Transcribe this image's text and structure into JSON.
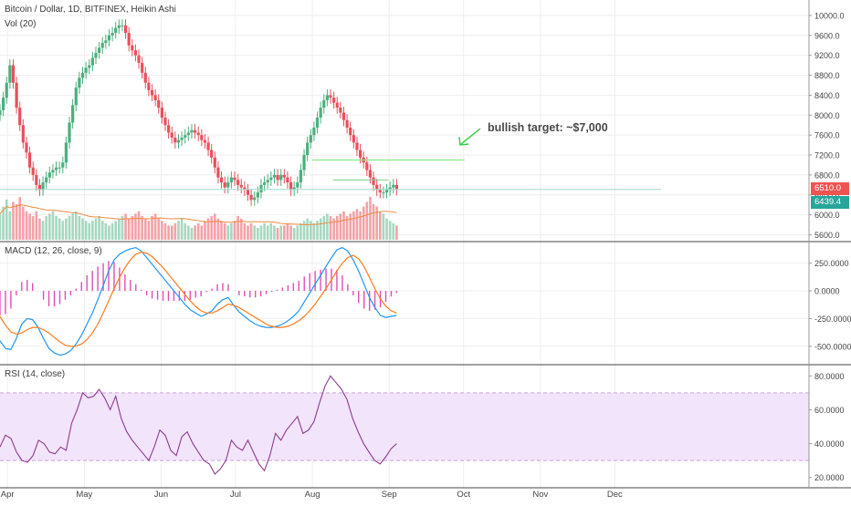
{
  "header": {
    "title": "Bitcoin / Dollar, 1D, BITFINEX, Heikin Ashi",
    "volume_label": "Vol (20)"
  },
  "annotation": {
    "text": "bullish target: ~$7,000",
    "color": "#4a4a4a",
    "arrow_color": "#2ecc40"
  },
  "price_tags": {
    "last_price": "6510.0",
    "last_price_color": "#ef5350",
    "ma_value": "6439.4",
    "ma_color": "#26a69a"
  },
  "colors": {
    "up": "#4caf7d",
    "down": "#e94f5b",
    "vol_up": "#a6d8bf",
    "vol_down": "#f3a2a8",
    "vol_ma": "#f08a3c",
    "macd": "#2196f3",
    "signal": "#ff7a1a",
    "hist": "#e14eb4",
    "rsi": "#8e3b8e",
    "rsi_band": "#f1e4fb",
    "target_line": "#7be87b",
    "grid": "#eeeeee"
  },
  "macd_label": "MACD (12, 26, close, 9)",
  "rsi_label": "RSI (14, close)",
  "chart_data": [
    {
      "type": "candlestick",
      "title": "Bitcoin / Dollar, 1D, BITFINEX, Heikin Ashi",
      "ylim": [
        5500,
        10200
      ],
      "y_ticks": [
        "10000.0",
        "9600.0",
        "9200.0",
        "8800.0",
        "8400.0",
        "8000.0",
        "7600.0",
        "7200.0",
        "6800.0",
        "6400.0",
        "6000.0",
        "5600.0"
      ],
      "y_tick_values": [
        10000,
        9600,
        9200,
        8800,
        8400,
        8000,
        7600,
        7200,
        6800,
        6400,
        6000,
        5600
      ],
      "x_ticks": [
        "Apr",
        "May",
        "Jun",
        "Jul",
        "Aug",
        "Sep",
        "Oct",
        "Nov",
        "Dec"
      ],
      "x_tick_days": [
        9,
        102,
        195,
        285,
        378,
        471,
        561,
        654,
        744
      ],
      "series": [
        {
          "name": "close",
          "start_day": 0,
          "values": [
            8100,
            8350,
            8650,
            9000,
            8650,
            8150,
            7800,
            7450,
            7250,
            6950,
            6800,
            6600,
            6500,
            6650,
            6750,
            6850,
            6900,
            6950,
            6950,
            7050,
            7450,
            7850,
            8200,
            8550,
            8750,
            8850,
            8950,
            9000,
            9150,
            9250,
            9350,
            9450,
            9500,
            9600,
            9650,
            9750,
            9800,
            9800,
            9650,
            9400,
            9300,
            9200,
            9050,
            8850,
            8650,
            8500,
            8400,
            8300,
            8150,
            7950,
            7800,
            7650,
            7550,
            7450,
            7500,
            7550,
            7600,
            7650,
            7700,
            7650,
            7600,
            7500,
            7450,
            7300,
            7150,
            6950,
            6750,
            6650,
            6550,
            6650,
            6750,
            6700,
            6600,
            6550,
            6500,
            6400,
            6300,
            6350,
            6450,
            6600,
            6650,
            6700,
            6750,
            6800,
            6700,
            6800,
            6750,
            6650,
            6500,
            6550,
            6650,
            6900,
            7200,
            7450,
            7600,
            7750,
            7950,
            8150,
            8300,
            8400,
            8350,
            8250,
            8150,
            8050,
            7900,
            7750,
            7600,
            7450,
            7300,
            7150,
            7050,
            6900,
            6750,
            6600,
            6500,
            6450,
            6450,
            6500,
            6550,
            6600,
            6510
          ]
        },
        {
          "name": "open",
          "start_day": 0,
          "values": [
            8000,
            8100,
            8350,
            8650,
            9000,
            8650,
            8150,
            7800,
            7450,
            7250,
            6950,
            6800,
            6600,
            6500,
            6650,
            6750,
            6850,
            6900,
            6950,
            6950,
            7050,
            7450,
            7850,
            8200,
            8550,
            8750,
            8850,
            8950,
            9000,
            9150,
            9250,
            9350,
            9450,
            9500,
            9600,
            9650,
            9750,
            9800,
            9800,
            9650,
            9400,
            9300,
            9200,
            9050,
            8850,
            8650,
            8500,
            8400,
            8300,
            8150,
            7950,
            7800,
            7650,
            7550,
            7450,
            7500,
            7550,
            7600,
            7650,
            7700,
            7650,
            7600,
            7500,
            7450,
            7300,
            7150,
            6950,
            6750,
            6650,
            6550,
            6650,
            6750,
            6700,
            6600,
            6550,
            6500,
            6400,
            6300,
            6350,
            6450,
            6600,
            6650,
            6700,
            6750,
            6800,
            6700,
            6800,
            6750,
            6650,
            6500,
            6550,
            6650,
            6900,
            7200,
            7450,
            7600,
            7750,
            7950,
            8150,
            8300,
            8400,
            8350,
            8250,
            8150,
            8050,
            7900,
            7750,
            7600,
            7450,
            7300,
            7150,
            7050,
            6900,
            6750,
            6600,
            6500,
            6450,
            6450,
            6500,
            6550,
            6600
          ]
        }
      ],
      "volume": {
        "name": "Vol (20)",
        "values": [
          0.55,
          0.7,
          0.85,
          0.6,
          0.8,
          0.75,
          0.9,
          0.7,
          0.6,
          0.55,
          0.5,
          0.6,
          0.45,
          0.4,
          0.5,
          0.55,
          0.6,
          0.5,
          0.45,
          0.4,
          0.45,
          0.5,
          0.55,
          0.6,
          0.5,
          0.45,
          0.4,
          0.35,
          0.4,
          0.45,
          0.5,
          0.4,
          0.35,
          0.3,
          0.35,
          0.4,
          0.45,
          0.5,
          0.55,
          0.45,
          0.5,
          0.55,
          0.6,
          0.5,
          0.45,
          0.4,
          0.5,
          0.55,
          0.45,
          0.4,
          0.35,
          0.3,
          0.3,
          0.35,
          0.4,
          0.45,
          0.35,
          0.3,
          0.25,
          0.3,
          0.35,
          0.3,
          0.4,
          0.45,
          0.5,
          0.55,
          0.45,
          0.4,
          0.35,
          0.3,
          0.35,
          0.4,
          0.5,
          0.45,
          0.35,
          0.3,
          0.35,
          0.3,
          0.25,
          0.3,
          0.35,
          0.3,
          0.35,
          0.3,
          0.25,
          0.3,
          0.3,
          0.35,
          0.3,
          0.25,
          0.3,
          0.35,
          0.4,
          0.45,
          0.4,
          0.35,
          0.4,
          0.45,
          0.5,
          0.55,
          0.5,
          0.45,
          0.5,
          0.55,
          0.6,
          0.5,
          0.55,
          0.6,
          0.65,
          0.6,
          0.7,
          0.8,
          0.9,
          0.75,
          0.7,
          0.6,
          0.55,
          0.45,
          0.4,
          0.35,
          0.3
        ]
      },
      "horizontal_lines": [
        {
          "name": "target",
          "value": 7100,
          "from_day": 378,
          "to_day": 562
        },
        {
          "name": "resistance",
          "value": 6700,
          "from_day": 403,
          "to_day": 470
        },
        {
          "name": "current",
          "value": 6510,
          "from_day": 0,
          "to_day": 800
        }
      ]
    },
    {
      "type": "line",
      "title": "MACD (12, 26, close, 9)",
      "ylim": [
        -650,
        420
      ],
      "y_ticks": [
        "250.0000",
        "0.0000",
        "-250.0000",
        "-500.0000"
      ],
      "y_tick_values": [
        250,
        0,
        -250,
        -500
      ],
      "series": [
        {
          "name": "MACD",
          "values": [
            -450,
            -520,
            -530,
            -430,
            -300,
            -250,
            -260,
            -330,
            -430,
            -520,
            -560,
            -580,
            -570,
            -540,
            -480,
            -400,
            -300,
            -200,
            -80,
            50,
            180,
            280,
            330,
            360,
            380,
            390,
            360,
            300,
            240,
            180,
            120,
            60,
            0,
            -60,
            -120,
            -170,
            -200,
            -230,
            -210,
            -180,
            -120,
            -80,
            -60,
            -130,
            -190,
            -230,
            -270,
            -300,
            -320,
            -330,
            -330,
            -320,
            -300,
            -270,
            -230,
            -180,
            -100,
            -20,
            60,
            140,
            220,
            300,
            370,
            390,
            360,
            280,
            180,
            60,
            -60,
            -150,
            -220,
            -240,
            -230,
            -220
          ]
        },
        {
          "name": "Signal",
          "values": [
            -230,
            -310,
            -370,
            -390,
            -380,
            -350,
            -330,
            -330,
            -350,
            -380,
            -420,
            -460,
            -490,
            -500,
            -500,
            -480,
            -440,
            -380,
            -300,
            -200,
            -90,
            20,
            120,
            210,
            280,
            330,
            350,
            340,
            310,
            260,
            210,
            150,
            90,
            30,
            -30,
            -90,
            -140,
            -180,
            -200,
            -200,
            -180,
            -150,
            -120,
            -130,
            -150,
            -180,
            -210,
            -240,
            -270,
            -300,
            -320,
            -330,
            -330,
            -320,
            -300,
            -270,
            -230,
            -180,
            -120,
            -50,
            20,
            100,
            180,
            250,
            300,
            320,
            290,
            220,
            120,
            20,
            -70,
            -140,
            -180,
            -200
          ]
        }
      ],
      "histogram": [
        -220,
        -210,
        -160,
        -40,
        80,
        100,
        70,
        0,
        -80,
        -140,
        -140,
        -120,
        -80,
        -40,
        20,
        80,
        140,
        180,
        220,
        250,
        270,
        260,
        210,
        150,
        100,
        60,
        10,
        -40,
        -70,
        -80,
        -90,
        -90,
        -90,
        -90,
        -90,
        -80,
        -60,
        -50,
        -10,
        20,
        60,
        70,
        60,
        0,
        -40,
        -50,
        -60,
        -60,
        -50,
        -30,
        -10,
        10,
        30,
        50,
        70,
        90,
        130,
        160,
        180,
        190,
        200,
        200,
        190,
        140,
        60,
        -40,
        -110,
        -160,
        -180,
        -170,
        -150,
        -100,
        -50,
        -20
      ]
    },
    {
      "type": "line",
      "title": "RSI (14, close)",
      "ylim": [
        15,
        85
      ],
      "y_ticks": [
        "80.0000",
        "60.0000",
        "40.0000",
        "20.0000"
      ],
      "y_tick_values": [
        80,
        60,
        40,
        20
      ],
      "band": [
        30,
        70
      ],
      "series": [
        {
          "name": "RSI",
          "values": [
            38,
            45,
            43,
            35,
            30,
            29,
            33,
            42,
            40,
            35,
            34,
            38,
            36,
            52,
            60,
            70,
            67,
            68,
            72,
            67,
            60,
            68,
            55,
            47,
            42,
            38,
            34,
            30,
            38,
            48,
            45,
            36,
            33,
            44,
            47,
            40,
            35,
            30,
            28,
            22,
            25,
            30,
            42,
            38,
            36,
            42,
            35,
            28,
            24,
            33,
            46,
            42,
            48,
            52,
            56,
            46,
            48,
            53,
            64,
            74,
            80,
            76,
            72,
            66,
            55,
            47,
            40,
            35,
            30,
            28,
            32,
            37,
            40
          ]
        }
      ]
    }
  ]
}
